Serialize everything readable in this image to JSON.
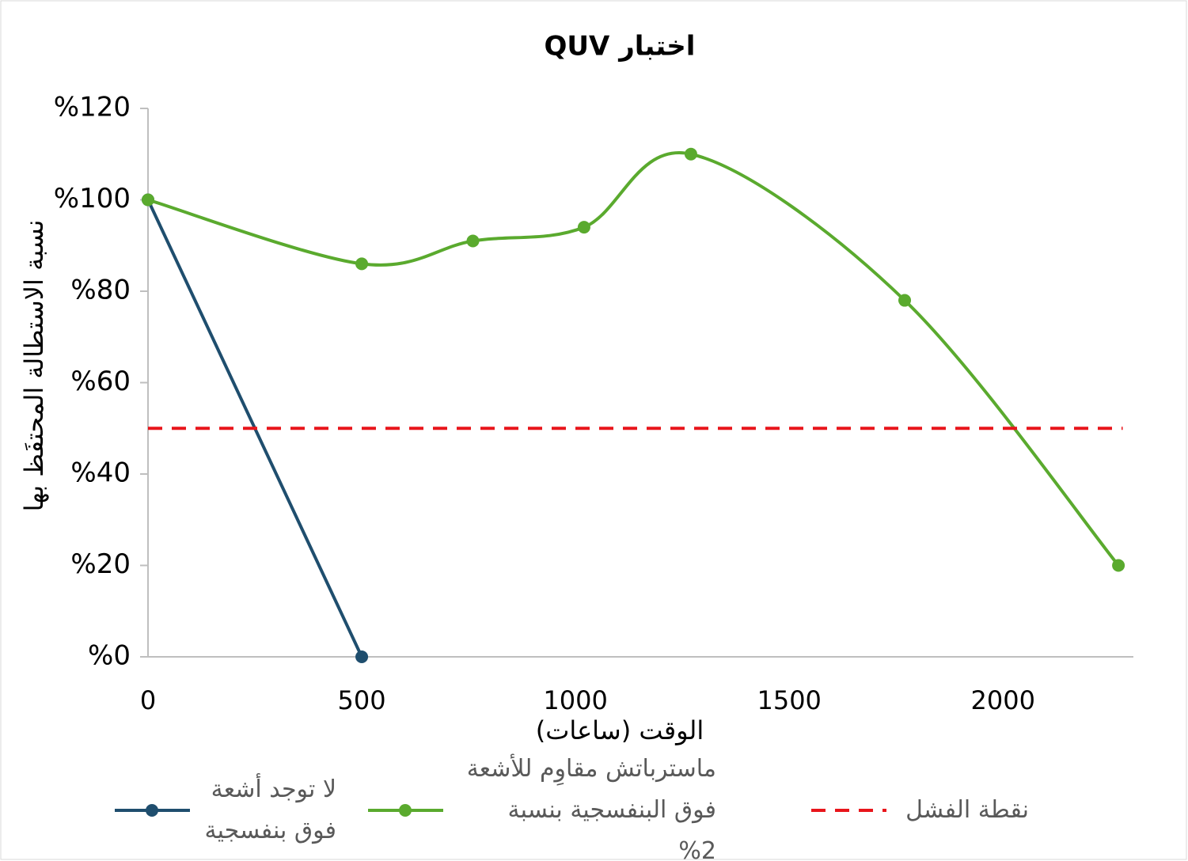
{
  "chart_data": {
    "type": "line",
    "title": "اختبار QUV",
    "x_label": "الوقت (ساعات)",
    "y_label": "نسبة الاستطالة المحتفَظ بها",
    "xlim": [
      0,
      2305
    ],
    "xticks": [
      0,
      500,
      1000,
      1500,
      2000
    ],
    "ylim": [
      0,
      120
    ],
    "yticks": [
      {
        "value": 0,
        "label": "%0"
      },
      {
        "value": 20,
        "label": "%20"
      },
      {
        "value": 40,
        "label": "%40"
      },
      {
        "value": 60,
        "label": "%60"
      },
      {
        "value": 80,
        "label": "%80"
      },
      {
        "value": 100,
        "label": "%100"
      },
      {
        "value": 120,
        "label": "%120"
      }
    ],
    "series": [
      {
        "name": "لا توجد أشعة فوق بنفسجية",
        "color": "#1f4e6e",
        "smooth": false,
        "markers": true,
        "dashed": false,
        "x": [
          0,
          500
        ],
        "values": [
          100,
          0
        ]
      },
      {
        "name": "ماسترباتش مقاوِم للأشعة فوق البنفسجية بنسبة 2%",
        "color": "#5aaa2e",
        "smooth": true,
        "markers": true,
        "dashed": false,
        "x": [
          0,
          500,
          760,
          1020,
          1270,
          1770,
          2270
        ],
        "values": [
          100,
          86,
          91,
          94,
          110,
          78,
          20
        ]
      },
      {
        "name": "نقطة الفشل",
        "color": "#e8151b",
        "smooth": false,
        "markers": false,
        "dashed": true,
        "x": [
          0,
          2280
        ],
        "values": [
          50,
          50
        ]
      }
    ]
  }
}
